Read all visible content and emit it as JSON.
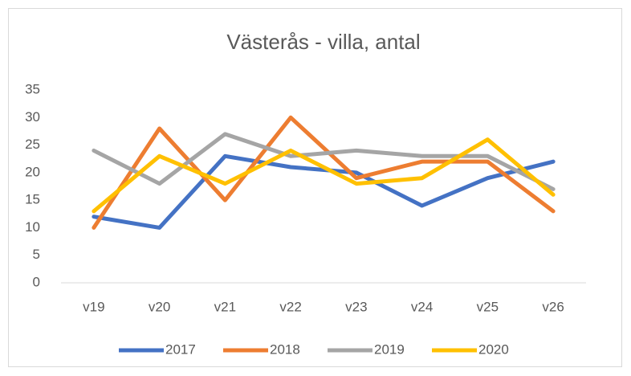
{
  "chart_data": {
    "type": "line",
    "title": "Västerås - villa, antal",
    "categories": [
      "v19",
      "v20",
      "v21",
      "v22",
      "v23",
      "v24",
      "v25",
      "v26"
    ],
    "series": [
      {
        "name": "2017",
        "color": "#4472c4",
        "values": [
          12,
          10,
          23,
          21,
          20,
          14,
          19,
          22
        ]
      },
      {
        "name": "2018",
        "color": "#ed7d31",
        "values": [
          10,
          28,
          15,
          30,
          19,
          22,
          22,
          13
        ]
      },
      {
        "name": "2019",
        "color": "#a5a5a5",
        "values": [
          24,
          18,
          27,
          23,
          24,
          23,
          23,
          17
        ]
      },
      {
        "name": "2020",
        "color": "#ffc000",
        "values": [
          13,
          23,
          18,
          24,
          18,
          19,
          26,
          16
        ]
      }
    ],
    "ylim": [
      0,
      35
    ],
    "yticks": [
      0,
      5,
      10,
      15,
      20,
      25,
      30,
      35
    ],
    "grid": false,
    "legend": "bottom"
  }
}
